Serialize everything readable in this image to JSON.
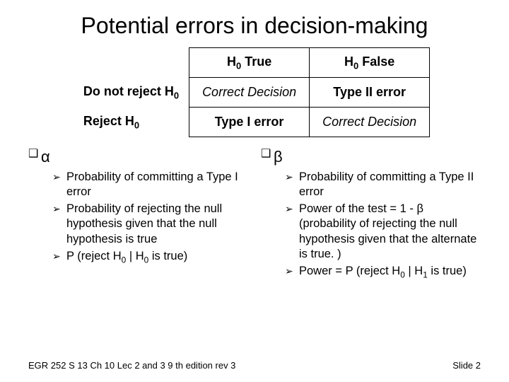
{
  "title": "Potential errors in decision-making",
  "table": {
    "col_headers": [
      "H₀ True",
      "H₀ False"
    ],
    "row_headers": [
      "Do not reject H₀",
      "Reject H₀"
    ],
    "cells": [
      [
        "Correct Decision",
        "Type II error"
      ],
      [
        "Type I error",
        "Correct Decision"
      ]
    ],
    "cell_style": [
      [
        "italic",
        "bold"
      ],
      [
        "bold",
        "italic"
      ]
    ]
  },
  "left": {
    "header": "α",
    "items": [
      "Probability of committing a Type I error",
      "Probability of rejecting the null hypothesis given that the null hypothesis is true",
      "P (reject H₀ | H₀ is true)"
    ]
  },
  "right": {
    "header": "β",
    "items": [
      "Probability of committing a Type II error",
      "Power of the test = 1 - β (probability of rejecting the null hypothesis given that the alternate is true. )",
      "Power = P (reject H₀ | H₁ is true)"
    ]
  },
  "footer": {
    "left": "EGR 252 S 13 Ch 10  Lec 2 and 3 9 th edition rev 3",
    "right": "Slide 2"
  },
  "bullets": {
    "l1": "❑",
    "l2": "➢"
  },
  "colors": {
    "bg": "#ffffff",
    "fg": "#000000"
  }
}
